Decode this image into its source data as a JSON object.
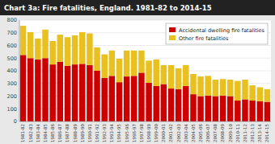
{
  "chart_data": {
    "type": "bar",
    "stacked": true,
    "title": "Chart 3a: Fire fatalities, England. 1981-82 to 2014-15",
    "categories": [
      "1981-82",
      "1982-83",
      "1983-84",
      "1984-85",
      "1985-86",
      "1986-87",
      "1987-88",
      "1988-89",
      "1989-90",
      "1990-91",
      "1991-92",
      "1992-93",
      "1993-94",
      "1994-95",
      "1995-96",
      "1996-97",
      "1997-98",
      "1998-99",
      "1999-00",
      "2000-01",
      "2001-02",
      "2002-03",
      "2003-04",
      "2004-05",
      "2005-06",
      "2006-07",
      "2007-08",
      "2008-09",
      "2009-10",
      "2010-11",
      "2011-12",
      "2012-13",
      "2013-14",
      "2014-15"
    ],
    "series": [
      {
        "name": "Accidental dwelling fire fatalities",
        "color": "#cc0000",
        "values": [
          525,
          500,
          490,
          500,
          450,
          470,
          440,
          450,
          455,
          445,
          400,
          345,
          360,
          310,
          355,
          360,
          385,
          305,
          280,
          295,
          260,
          255,
          280,
          215,
          200,
          205,
          200,
          205,
          200,
          165,
          175,
          165,
          160,
          155
        ]
      },
      {
        "name": "Other fire fatalities",
        "color": "#e8c020",
        "values": [
          230,
          205,
          165,
          225,
          185,
          215,
          225,
          230,
          250,
          250,
          185,
          185,
          200,
          185,
          205,
          200,
          175,
          175,
          210,
          150,
          185,
          165,
          165,
          160,
          155,
          155,
          130,
          130,
          130,
          155,
          155,
          120,
          110,
          100
        ]
      }
    ],
    "ylim": [
      0,
      800
    ],
    "yticks": [
      0,
      100,
      200,
      300,
      400,
      500,
      600,
      700,
      800
    ],
    "grid": true,
    "legend": "upper right"
  }
}
